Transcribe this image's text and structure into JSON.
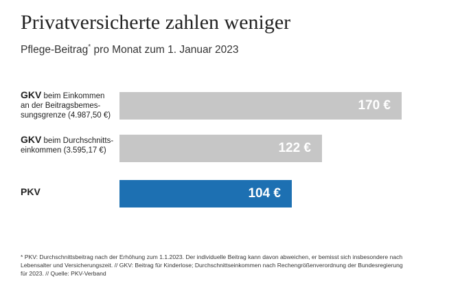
{
  "header": {
    "title": "Privatversicherte zahlen weniger",
    "subtitle_main": "Pflege-Beitrag",
    "subtitle_mark": "*",
    "subtitle_rest": " pro Monat zum 1. Januar 2023"
  },
  "colors": {
    "gkv_bar": "#c6c6c6",
    "pkv_bar": "#1d70b2"
  },
  "chart_data": {
    "type": "bar",
    "orientation": "horizontal",
    "title": "Privatversicherte zahlen weniger",
    "subtitle": "Pflege-Beitrag* pro Monat zum 1. Januar 2023",
    "unit": "€",
    "max_value": 170,
    "categories": [
      {
        "strong": "GKV",
        "line1": " beim Einkommen",
        "lines": [
          "an der Beitragsbemes-",
          "sungsgrenze (4.987,50 €)"
        ],
        "value": 170,
        "value_label": "170 €",
        "color": "#c6c6c6"
      },
      {
        "strong": "GKV",
        "line1": " beim Durchschnitts-",
        "lines": [
          "einkommen (3.595,17 €)"
        ],
        "value": 122,
        "value_label": "122 €",
        "color": "#c6c6c6"
      },
      {
        "strong": "PKV",
        "line1": "",
        "lines": [],
        "value": 104,
        "value_label": "104 €",
        "color": "#1d70b2"
      }
    ]
  },
  "footnote": {
    "text": "* PKV: Durchschnittsbeitrag nach der Erhöhung zum 1.1.2023. Der individuelle Beitrag kann davon abweichen, er bemisst sich insbesondere nach Lebensalter und Versicherungszeit. // GKV: Beitrag für Kinderlose; Durchschnittseinkommen nach Rechengrößenverordnung der Bundesregierung für 2023. // Quelle: PKV-Verband"
  }
}
